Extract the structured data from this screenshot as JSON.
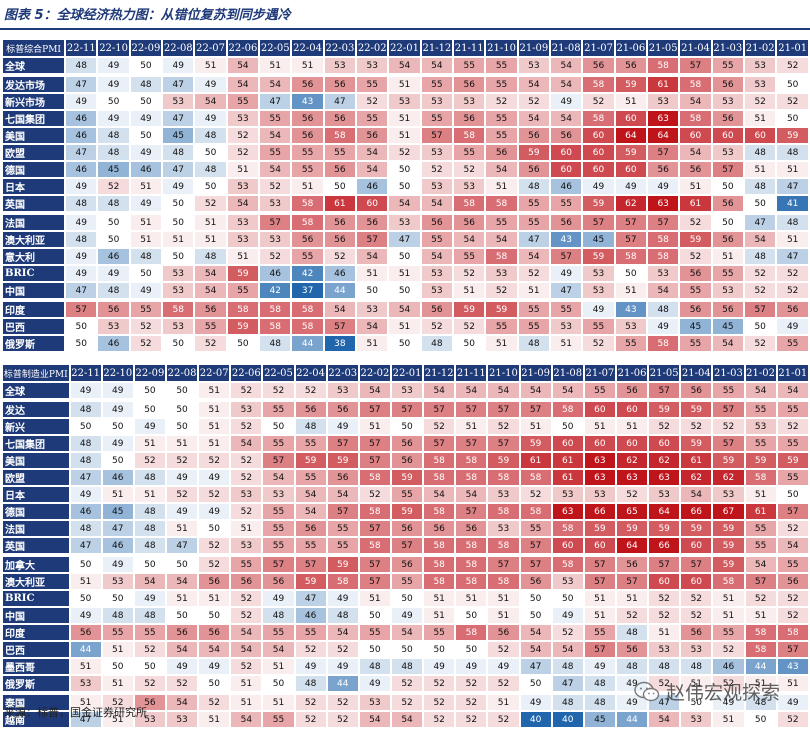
{
  "title": "图表 5：全球经济热力图：从错位复苏到同步遇冷",
  "source": "来源：标普，国金证券研究所",
  "watermark": "赵伟宏观探索",
  "colors": {
    "header_bg": "#1f3a78",
    "low": "#2166ac",
    "mid": "#ffffff",
    "high": "#c0141b"
  },
  "chart_data": [
    {
      "type": "heatmap",
      "corner_label": "标普综合PMI",
      "columns": [
        "22-11",
        "22-10",
        "22-09",
        "22-08",
        "22-07",
        "22-06",
        "22-05",
        "22-04",
        "22-03",
        "22-02",
        "22-01",
        "21-12",
        "21-11",
        "21-10",
        "21-09",
        "21-08",
        "21-07",
        "21-06",
        "21-05",
        "21-04",
        "21-03",
        "21-02",
        "21-01"
      ],
      "groups": [
        1,
        8,
        5
      ],
      "rows": [
        {
          "label": "全球",
          "values": [
            48,
            49,
            50,
            49,
            51,
            54,
            51,
            51,
            53,
            53,
            54,
            54,
            55,
            55,
            53,
            54,
            56,
            56,
            58,
            57,
            55,
            53,
            52
          ]
        },
        {
          "label": "发达市场",
          "values": [
            47,
            49,
            48,
            47,
            49,
            54,
            54,
            56,
            56,
            55,
            51,
            55,
            56,
            55,
            54,
            54,
            58,
            59,
            61,
            58,
            56,
            53,
            50
          ]
        },
        {
          "label": "新兴市场",
          "values": [
            49,
            50,
            50,
            53,
            54,
            55,
            47,
            43,
            47,
            52,
            53,
            53,
            53,
            52,
            52,
            49,
            52,
            51,
            53,
            54,
            53,
            52,
            52
          ]
        },
        {
          "label": "七国集团",
          "values": [
            46,
            49,
            49,
            47,
            49,
            53,
            55,
            56,
            56,
            55,
            51,
            55,
            56,
            55,
            54,
            54,
            58,
            60,
            63,
            58,
            56,
            51,
            50
          ]
        },
        {
          "label": "美国",
          "values": [
            46,
            48,
            50,
            45,
            48,
            52,
            54,
            56,
            58,
            56,
            51,
            57,
            58,
            55,
            56,
            56,
            60,
            64,
            64,
            60,
            60,
            60,
            59
          ]
        },
        {
          "label": "欧盟",
          "values": [
            47,
            48,
            49,
            48,
            50,
            52,
            55,
            55,
            55,
            54,
            52,
            53,
            55,
            56,
            59,
            60,
            60,
            59,
            57,
            54,
            53,
            48,
            48
          ]
        },
        {
          "label": "德国",
          "values": [
            46,
            45,
            46,
            47,
            48,
            51,
            54,
            55,
            56,
            54,
            50,
            52,
            52,
            54,
            56,
            60,
            60,
            60,
            56,
            56,
            57,
            51,
            51
          ]
        },
        {
          "label": "日本",
          "values": [
            49,
            52,
            51,
            49,
            50,
            53,
            52,
            51,
            50,
            46,
            50,
            53,
            53,
            51,
            48,
            46,
            49,
            49,
            49,
            51,
            50,
            48,
            47
          ]
        },
        {
          "label": "英国",
          "values": [
            48,
            48,
            49,
            50,
            52,
            54,
            53,
            58,
            61,
            60,
            54,
            54,
            58,
            58,
            55,
            55,
            59,
            62,
            63,
            61,
            56,
            50,
            41
          ]
        },
        {
          "label": "法国",
          "values": [
            49,
            50,
            51,
            50,
            51,
            53,
            57,
            58,
            56,
            56,
            53,
            56,
            56,
            55,
            55,
            56,
            57,
            57,
            57,
            52,
            50,
            47,
            48
          ]
        },
        {
          "label": "澳大利亚",
          "values": [
            48,
            50,
            51,
            51,
            51,
            53,
            53,
            56,
            56,
            57,
            47,
            55,
            54,
            54,
            47,
            43,
            45,
            57,
            58,
            59,
            56,
            54,
            51
          ]
        },
        {
          "label": "意大利",
          "values": [
            49,
            46,
            48,
            50,
            48,
            51,
            52,
            55,
            52,
            54,
            50,
            54,
            55,
            58,
            54,
            57,
            59,
            58,
            58,
            52,
            51,
            48,
            47
          ]
        },
        {
          "label": "BRIC",
          "values": [
            49,
            49,
            50,
            53,
            54,
            59,
            46,
            42,
            46,
            51,
            51,
            53,
            52,
            53,
            52,
            49,
            53,
            50,
            53,
            56,
            55,
            52,
            52
          ]
        },
        {
          "label": "中国",
          "values": [
            47,
            48,
            49,
            53,
            54,
            55,
            42,
            37,
            44,
            50,
            50,
            53,
            51,
            52,
            51,
            47,
            53,
            51,
            54,
            55,
            53,
            52,
            52
          ]
        },
        {
          "label": "印度",
          "values": [
            57,
            56,
            55,
            58,
            56,
            58,
            58,
            58,
            54,
            53,
            54,
            56,
            59,
            59,
            55,
            55,
            49,
            43,
            48,
            56,
            56,
            57,
            56
          ]
        },
        {
          "label": "巴西",
          "values": [
            50,
            53,
            52,
            53,
            55,
            59,
            58,
            58,
            57,
            54,
            51,
            52,
            52,
            55,
            55,
            53,
            55,
            53,
            49,
            45,
            45,
            50,
            49
          ]
        },
        {
          "label": "俄罗斯",
          "values": [
            50,
            46,
            52,
            50,
            52,
            50,
            48,
            44,
            38,
            51,
            50,
            48,
            50,
            51,
            48,
            51,
            52,
            55,
            58,
            55,
            54,
            52,
            55
          ]
        }
      ]
    },
    {
      "type": "heatmap",
      "corner_label": "标普制造业PMI",
      "columns": [
        "22-11",
        "22-10",
        "22-09",
        "22-08",
        "22-07",
        "22-06",
        "22-05",
        "22-04",
        "22-03",
        "22-02",
        "22-01",
        "21-12",
        "21-11",
        "21-10",
        "21-09",
        "21-08",
        "21-07",
        "21-06",
        "21-05",
        "21-04",
        "21-03",
        "21-02",
        "21-01"
      ],
      "groups": [
        1,
        9,
        8
      ],
      "rows": [
        {
          "label": "全球",
          "values": [
            49,
            49,
            50,
            50,
            51,
            52,
            52,
            52,
            53,
            54,
            53,
            54,
            54,
            54,
            54,
            54,
            55,
            56,
            57,
            56,
            55,
            54,
            54
          ]
        },
        {
          "label": "发达",
          "values": [
            48,
            49,
            50,
            50,
            51,
            53,
            55,
            56,
            56,
            57,
            57,
            57,
            57,
            57,
            57,
            58,
            60,
            60,
            59,
            59,
            57,
            55,
            55
          ]
        },
        {
          "label": "新兴",
          "values": [
            50,
            50,
            49,
            50,
            51,
            52,
            50,
            48,
            49,
            51,
            50,
            52,
            51,
            52,
            51,
            50,
            51,
            51,
            52,
            52,
            52,
            53,
            52
          ]
        },
        {
          "label": "七国集团",
          "values": [
            48,
            49,
            51,
            51,
            51,
            54,
            55,
            55,
            57,
            57,
            56,
            57,
            57,
            57,
            59,
            60,
            60,
            60,
            60,
            59,
            57,
            55,
            55
          ]
        },
        {
          "label": "美国",
          "values": [
            48,
            50,
            52,
            52,
            52,
            52,
            57,
            59,
            59,
            57,
            56,
            58,
            58,
            59,
            61,
            61,
            63,
            62,
            62,
            61,
            59,
            59,
            59
          ]
        },
        {
          "label": "欧盟",
          "values": [
            47,
            46,
            48,
            49,
            49,
            52,
            54,
            55,
            56,
            58,
            59,
            58,
            58,
            58,
            58,
            61,
            63,
            63,
            63,
            62,
            62,
            58,
            55
          ]
        },
        {
          "label": "日本",
          "values": [
            49,
            51,
            51,
            52,
            52,
            53,
            53,
            54,
            54,
            52,
            55,
            54,
            54,
            53,
            52,
            53,
            53,
            52,
            53,
            54,
            53,
            51,
            50
          ]
        },
        {
          "label": "德国",
          "values": [
            46,
            45,
            48,
            49,
            49,
            52,
            55,
            54,
            57,
            58,
            59,
            58,
            57,
            58,
            58,
            63,
            66,
            65,
            64,
            66,
            67,
            61,
            57
          ]
        },
        {
          "label": "法国",
          "values": [
            48,
            47,
            48,
            51,
            50,
            51,
            55,
            56,
            55,
            57,
            56,
            56,
            56,
            53,
            55,
            58,
            59,
            59,
            59,
            59,
            59,
            55,
            52
          ]
        },
        {
          "label": "英国",
          "values": [
            47,
            46,
            48,
            47,
            52,
            53,
            55,
            55,
            55,
            58,
            57,
            58,
            58,
            58,
            57,
            60,
            60,
            64,
            66,
            60,
            59,
            55,
            54
          ]
        },
        {
          "label": "加拿大",
          "values": [
            50,
            49,
            50,
            50,
            52,
            55,
            57,
            57,
            59,
            57,
            56,
            58,
            58,
            57,
            57,
            58,
            57,
            56,
            57,
            57,
            59,
            54,
            55
          ]
        },
        {
          "label": "澳大利亚",
          "values": [
            51,
            53,
            54,
            54,
            56,
            56,
            56,
            59,
            58,
            57,
            55,
            58,
            58,
            58,
            56,
            53,
            57,
            57,
            60,
            60,
            58,
            57,
            56
          ]
        },
        {
          "label": "BRIC",
          "values": [
            50,
            50,
            49,
            51,
            51,
            52,
            49,
            47,
            49,
            51,
            50,
            51,
            51,
            51,
            50,
            50,
            51,
            51,
            52,
            52,
            51,
            52,
            52
          ]
        },
        {
          "label": "中国",
          "values": [
            49,
            48,
            48,
            50,
            50,
            52,
            48,
            46,
            48,
            50,
            49,
            51,
            50,
            51,
            50,
            49,
            51,
            52,
            52,
            52,
            51,
            51,
            52
          ]
        },
        {
          "label": "印度",
          "values": [
            56,
            55,
            55,
            56,
            56,
            54,
            55,
            55,
            54,
            55,
            54,
            55,
            58,
            56,
            54,
            52,
            55,
            48,
            51,
            56,
            55,
            58,
            58
          ]
        },
        {
          "label": "巴西",
          "values": [
            44,
            51,
            52,
            54,
            54,
            54,
            54,
            52,
            52,
            50,
            50,
            50,
            50,
            52,
            54,
            54,
            57,
            56,
            53,
            53,
            52,
            58,
            57
          ]
        },
        {
          "label": "墨西哥",
          "values": [
            51,
            50,
            50,
            49,
            49,
            52,
            51,
            49,
            49,
            48,
            48,
            49,
            49,
            49,
            47,
            48,
            49,
            48,
            48,
            48,
            46,
            44,
            43
          ]
        },
        {
          "label": "俄罗斯",
          "values": [
            53,
            51,
            52,
            52,
            50,
            51,
            50,
            48,
            44,
            49,
            52,
            52,
            52,
            52,
            50,
            47,
            48,
            49,
            52,
            51,
            52,
            51,
            51
          ]
        },
        {
          "label": "泰国",
          "values": [
            51,
            52,
            56,
            54,
            52,
            51,
            51,
            52,
            52,
            53,
            52,
            52,
            52,
            51,
            49,
            48,
            48,
            49,
            47,
            50,
            49,
            48,
            49
          ]
        },
        {
          "label": "越南",
          "values": [
            47,
            51,
            53,
            53,
            51,
            54,
            55,
            52,
            52,
            54,
            54,
            52,
            52,
            52,
            40,
            40,
            45,
            44,
            54,
            53,
            51,
            50,
            52
          ]
        }
      ]
    }
  ]
}
